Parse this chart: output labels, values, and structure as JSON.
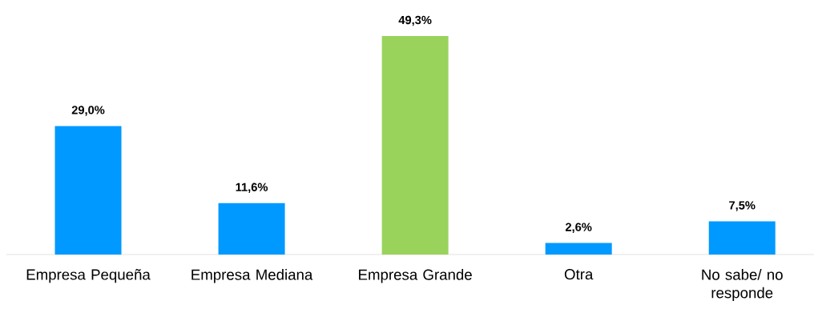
{
  "chart_data": {
    "type": "bar",
    "categories": [
      "Empresa Pequeña",
      "Empresa Mediana",
      "Empresa Grande",
      "Otra",
      "No sabe/ no responde"
    ],
    "values": [
      29.0,
      11.6,
      49.3,
      2.6,
      7.5
    ],
    "colors": [
      "#0099ff",
      "#0099ff",
      "#99d35c",
      "#0099ff",
      "#0099ff"
    ],
    "value_labels": [
      "29,0%",
      "11,6%",
      "49,3%",
      "2,6%",
      "7,5%"
    ]
  }
}
